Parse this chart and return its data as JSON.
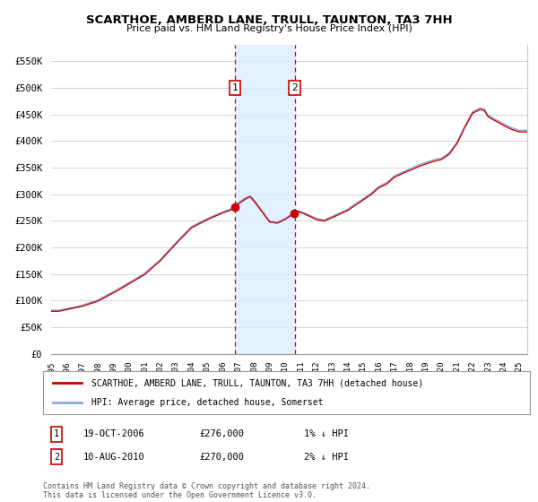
{
  "title": "SCARTHOE, AMBERD LANE, TRULL, TAUNTON, TA3 7HH",
  "subtitle": "Price paid vs. HM Land Registry's House Price Index (HPI)",
  "legend_line1": "SCARTHOE, AMBERD LANE, TRULL, TAUNTON, TA3 7HH (detached house)",
  "legend_line2": "HPI: Average price, detached house, Somerset",
  "transaction1_date": "19-OCT-2006",
  "transaction1_price": "£276,000",
  "transaction1_hpi": "1% ↓ HPI",
  "transaction2_date": "10-AUG-2010",
  "transaction2_price": "£270,000",
  "transaction2_hpi": "2% ↓ HPI",
  "footnote": "Contains HM Land Registry data © Crown copyright and database right 2024.\nThis data is licensed under the Open Government Licence v3.0.",
  "ylim": [
    0,
    580000
  ],
  "yticks": [
    0,
    50000,
    100000,
    150000,
    200000,
    250000,
    300000,
    350000,
    400000,
    450000,
    500000,
    550000
  ],
  "ytick_labels": [
    "£0",
    "£50K",
    "£100K",
    "£150K",
    "£200K",
    "£250K",
    "£300K",
    "£350K",
    "£400K",
    "£450K",
    "£500K",
    "£550K"
  ],
  "background_color": "#ffffff",
  "grid_color": "#cccccc",
  "hpi_line_color": "#88aadd",
  "price_line_color": "#cc0000",
  "transaction1_x": 2006.79,
  "transaction2_x": 2010.6,
  "shade_color": "#ddeeff",
  "xlim_start": 1995.0,
  "xlim_end": 2025.5
}
